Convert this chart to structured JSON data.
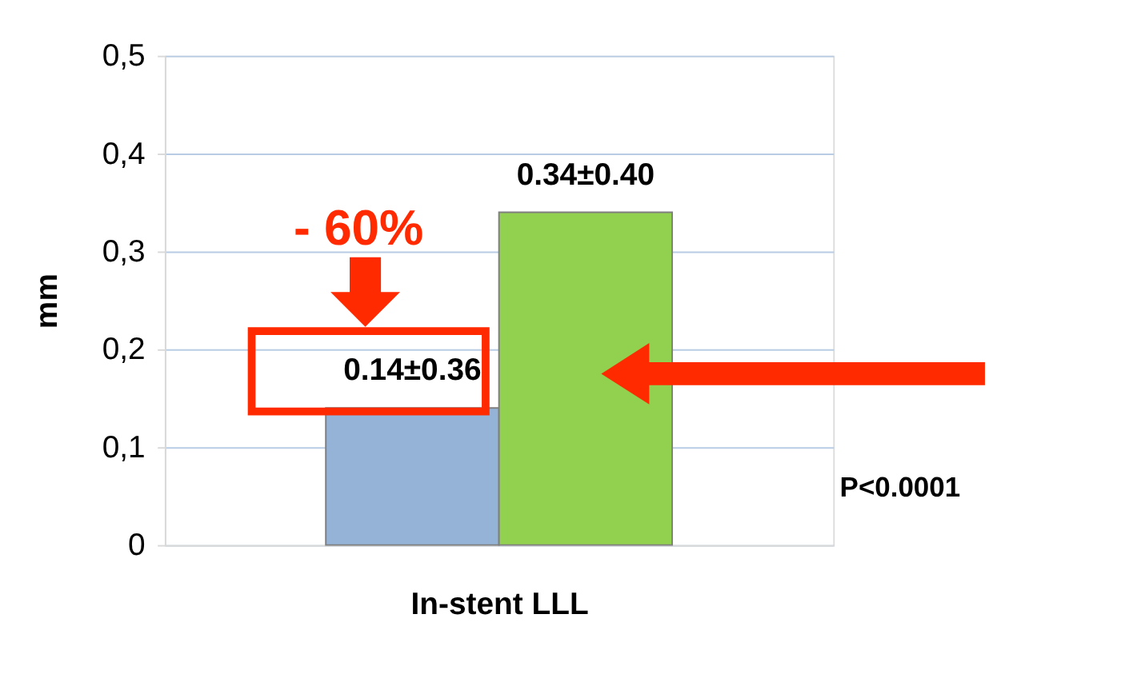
{
  "chart_data": {
    "type": "bar",
    "xlabel": "In-stent LLL",
    "ylabel": "mm",
    "categories": [
      null,
      null
    ],
    "values": [
      0.14,
      0.34
    ],
    "colors": [
      "#95b3d7",
      "#92d050"
    ],
    "value_labels": [
      "0.14±0.36",
      "0.34±0.40"
    ],
    "annotations": [
      "- 60%",
      "P<0.0001"
    ],
    "ylim": [
      0,
      0.5
    ],
    "yticks": [
      {
        "value": 0,
        "label": "0"
      },
      {
        "value": 0.1,
        "label": "0,1"
      },
      {
        "value": 0.2,
        "label": "0,2"
      },
      {
        "value": 0.3,
        "label": "0,3"
      },
      {
        "value": 0.4,
        "label": "0,4"
      },
      {
        "value": 0.5,
        "label": "0,5"
      }
    ],
    "grid": "y",
    "tick_labels": "y"
  }
}
